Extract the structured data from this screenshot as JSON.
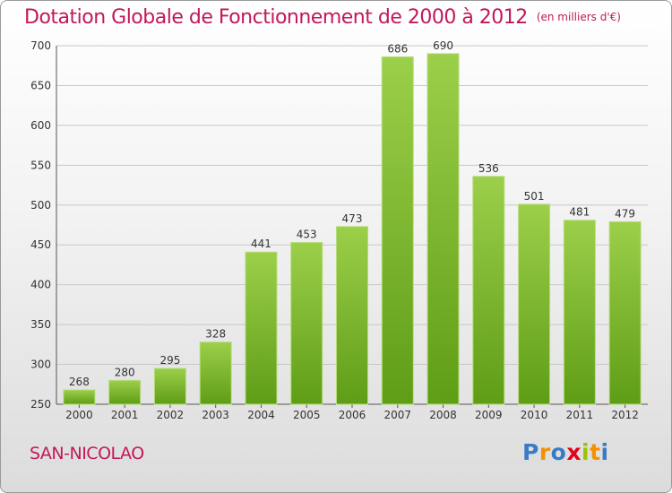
{
  "title": "Dotation Globale de Fonctionnement de 2000 à 2012",
  "unit": "(en milliers d'€)",
  "commune": "SAN-NICOLAO",
  "logo": {
    "letters": [
      "P",
      "r",
      "o",
      "x",
      "i",
      "t",
      "i"
    ],
    "colors": [
      "#3a7cc4",
      "#f39200",
      "#3a7cc4",
      "#e2001a",
      "#9bc400",
      "#f39200",
      "#3a7cc4"
    ]
  },
  "colors": {
    "accent": "#c2185b",
    "bar_top": "#9ccf4a",
    "bar_bottom": "#5f9d16"
  },
  "chart_data": {
    "type": "bar",
    "categories": [
      "2000",
      "2001",
      "2002",
      "2003",
      "2004",
      "2005",
      "2006",
      "2007",
      "2008",
      "2009",
      "2010",
      "2011",
      "2012"
    ],
    "values": [
      268,
      280,
      295,
      328,
      441,
      453,
      473,
      686,
      690,
      536,
      501,
      481,
      479
    ],
    "ylim": [
      250,
      700
    ],
    "yticks": [
      250,
      300,
      350,
      400,
      450,
      500,
      550,
      600,
      650,
      700
    ],
    "grid": true
  }
}
